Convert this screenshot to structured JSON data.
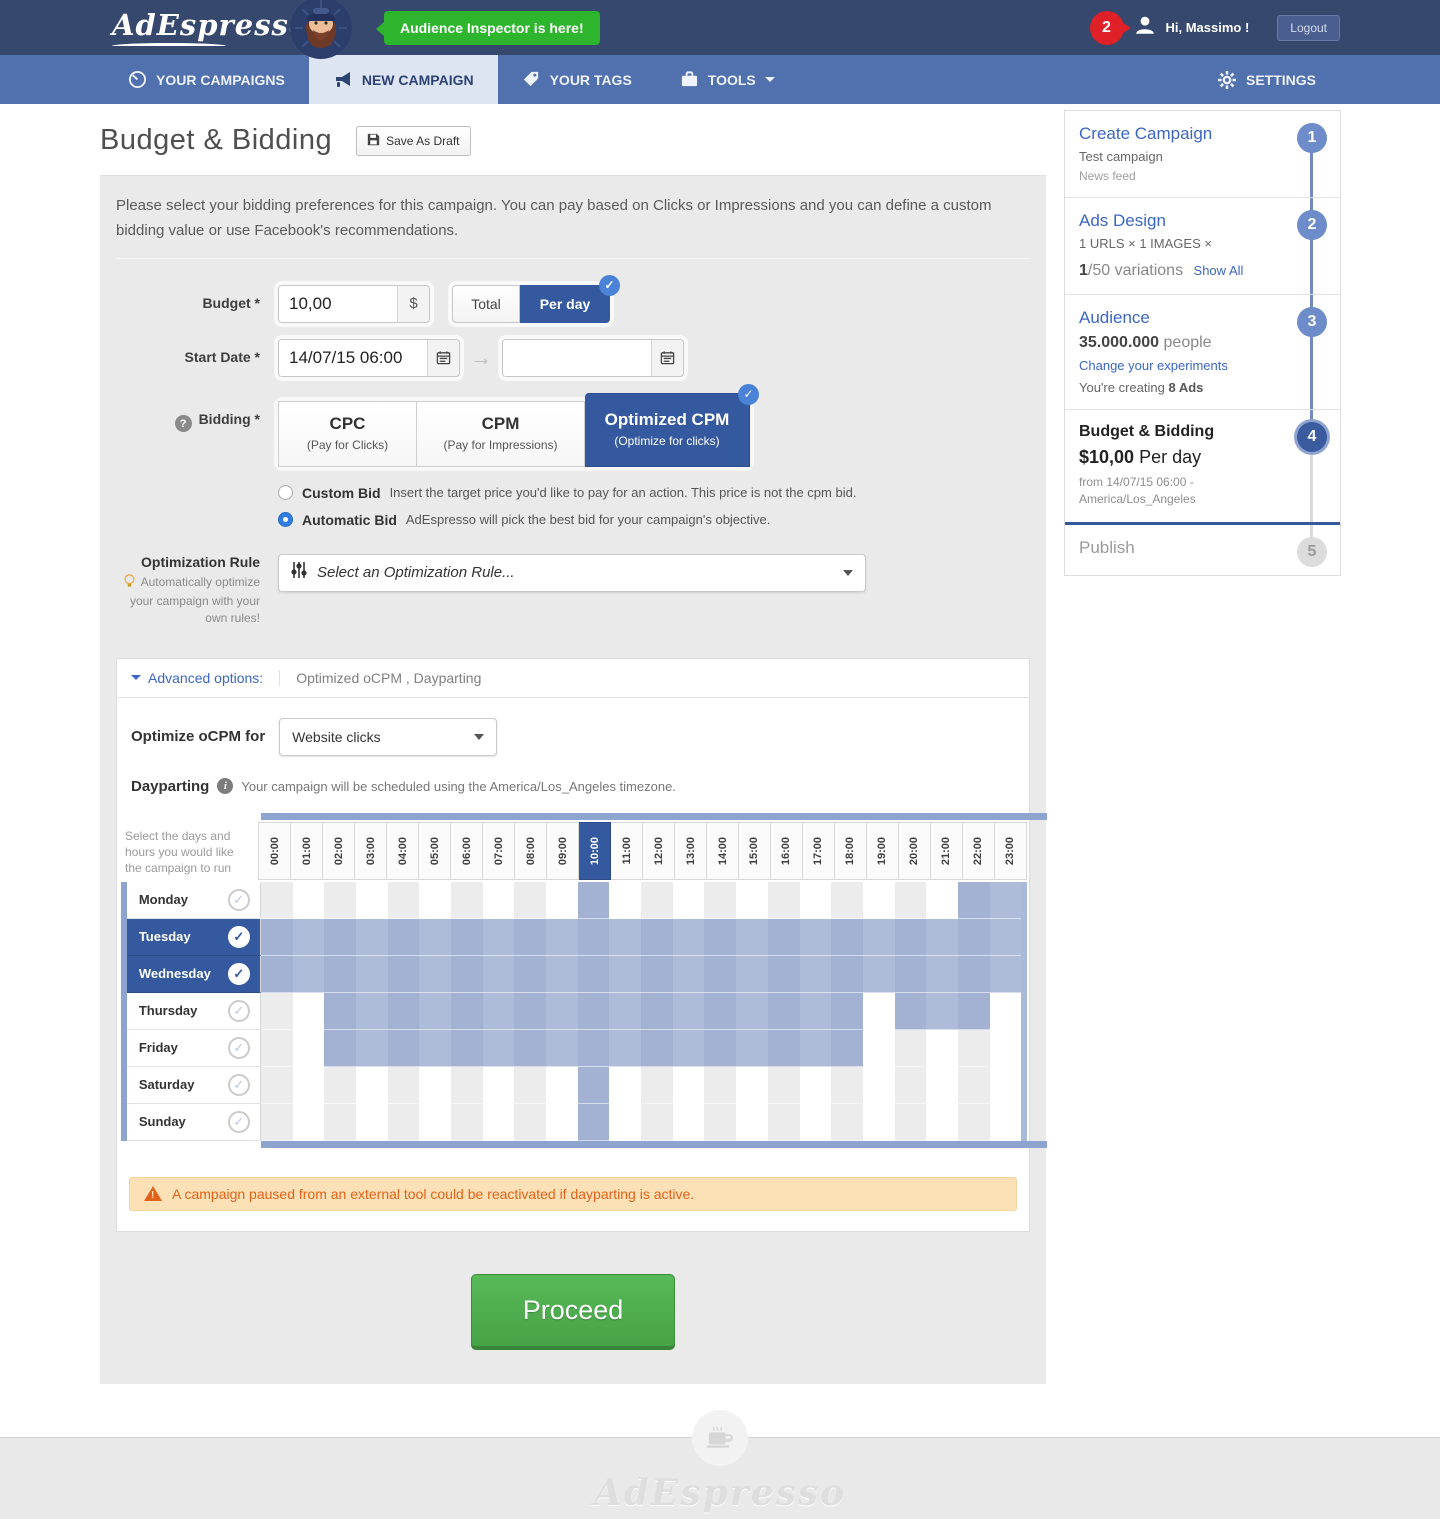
{
  "header": {
    "logo": "AdEspresso",
    "announcement": "Audience Inspector is here!",
    "notification_count": "2",
    "greeting": "Hi, Massimo !",
    "logout_label": "Logout"
  },
  "nav": {
    "campaigns": "YOUR CAMPAIGNS",
    "new_campaign": "NEW CAMPAIGN",
    "tags": "YOUR TAGS",
    "tools": "TOOLS",
    "settings": "SETTINGS"
  },
  "page": {
    "title": "Budget & Bidding",
    "save_draft_label": "Save As Draft",
    "intro": "Please select your bidding preferences for this campaign. You can pay based on Clicks or Impressions and you can define a custom bidding value or use Facebook's recommendations.",
    "proceed_label": "Proceed"
  },
  "form": {
    "budget": {
      "label": "Budget *",
      "value": "10,00",
      "currency": "$",
      "total_label": "Total",
      "per_day_label": "Per day"
    },
    "start_date": {
      "label": "Start Date *",
      "value": "14/07/15 06:00",
      "end_value": ""
    },
    "bidding": {
      "label": "Bidding *",
      "options": [
        {
          "title": "CPC",
          "subtitle": "(Pay for Clicks)",
          "selected": false
        },
        {
          "title": "CPM",
          "subtitle": "(Pay for Impressions)",
          "selected": false
        },
        {
          "title": "Optimized CPM",
          "subtitle": "(Optimize for clicks)",
          "selected": true
        }
      ],
      "custom_bid_label": "Custom Bid",
      "custom_bid_desc": "Insert the target price you'd like to pay for an action. This price is not the cpm bid.",
      "automatic_bid_label": "Automatic Bid",
      "automatic_bid_desc": "AdEspresso will pick the best bid for your campaign's objective."
    },
    "optimization_rule": {
      "label": "Optimization Rule",
      "hint": "Automatically optimize your campaign with your own rules!",
      "placeholder": "Select an Optimization Rule..."
    }
  },
  "advanced": {
    "toggle_label": "Advanced options:",
    "summary": "Optimized oCPM , Dayparting",
    "optimize_label": "Optimize oCPM for",
    "optimize_value": "Website clicks",
    "dayparting_label": "Dayparting",
    "dayparting_info": "Your campaign will be scheduled using the America/Los_Angeles timezone.",
    "grid": {
      "hint": "Select the days and hours you would like the campaign to run",
      "hours": [
        "00:00",
        "01:00",
        "02:00",
        "03:00",
        "04:00",
        "05:00",
        "06:00",
        "07:00",
        "08:00",
        "09:00",
        "10:00",
        "11:00",
        "12:00",
        "13:00",
        "14:00",
        "15:00",
        "16:00",
        "17:00",
        "18:00",
        "19:00",
        "20:00",
        "21:00",
        "22:00",
        "23:00"
      ],
      "highlighted_hour": "10:00",
      "days": [
        {
          "name": "Monday",
          "checked": false,
          "hours": [
            10,
            22,
            23
          ]
        },
        {
          "name": "Tuesday",
          "checked": true,
          "hours": [
            0,
            1,
            2,
            3,
            4,
            5,
            6,
            7,
            8,
            9,
            10,
            11,
            12,
            13,
            14,
            15,
            16,
            17,
            18,
            19,
            20,
            21,
            22,
            23
          ]
        },
        {
          "name": "Wednesday",
          "checked": true,
          "hours": [
            0,
            1,
            2,
            3,
            4,
            5,
            6,
            7,
            8,
            9,
            10,
            11,
            12,
            13,
            14,
            15,
            16,
            17,
            18,
            19,
            20,
            21,
            22,
            23
          ]
        },
        {
          "name": "Thursday",
          "checked": false,
          "hours": [
            2,
            3,
            4,
            5,
            6,
            7,
            8,
            9,
            10,
            11,
            12,
            13,
            14,
            15,
            16,
            17,
            18,
            20,
            21,
            22
          ]
        },
        {
          "name": "Friday",
          "checked": false,
          "hours": [
            2,
            3,
            4,
            5,
            6,
            7,
            8,
            9,
            10,
            11,
            12,
            13,
            14,
            15,
            16,
            17,
            18
          ]
        },
        {
          "name": "Saturday",
          "checked": false,
          "hours": [
            10
          ]
        },
        {
          "name": "Sunday",
          "checked": false,
          "hours": [
            10
          ]
        }
      ]
    },
    "warning": "A campaign paused from an external tool could be reactivated if dayparting is active."
  },
  "sidebar": {
    "step1": {
      "num": "1",
      "title": "Create Campaign",
      "line1": "Test campaign",
      "line2": "News feed"
    },
    "step2": {
      "num": "2",
      "title": "Ads Design",
      "line1": "1 URLS × 1 IMAGES ×",
      "big_bold": "1",
      "big_rest": "/50 variations",
      "link": "Show All"
    },
    "step3": {
      "num": "3",
      "title": "Audience",
      "big_bold": "35.000.000",
      "big_rest": " people",
      "link": "Change your experiments",
      "line_pre": "You're creating ",
      "line_bold": "8 Ads"
    },
    "step4": {
      "num": "4",
      "title": "Budget & Bidding",
      "amount": "$10,00",
      "freq": " Per day",
      "sub": "from 14/07/15 06:00 - America/Los_Angeles"
    },
    "step5": {
      "num": "5",
      "title": "Publish"
    }
  },
  "footer": {
    "watermark": "AdEspresso"
  },
  "theme": {
    "topbar_bg": "#36486e",
    "nav_bg": "#5170ae",
    "active_tab_bg": "#dde4f2",
    "accent_blue": "#35599e",
    "link_blue": "#3b66c4",
    "badge_green": "#2db52d",
    "proceed_green": "#47a347",
    "notification_red": "#df2026",
    "selected_cell": "#a9b7d6",
    "grid_strip": "#8da4cf",
    "warning_bg": "#fbe1b5",
    "warning_text": "#e2621b"
  }
}
